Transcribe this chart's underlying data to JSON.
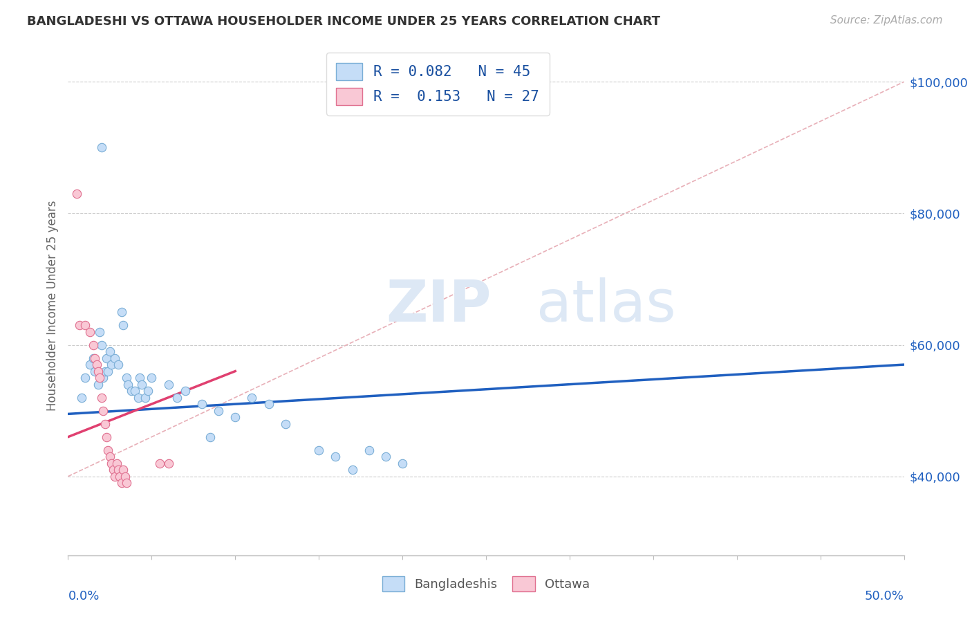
{
  "title": "BANGLADESHI VS OTTAWA HOUSEHOLDER INCOME UNDER 25 YEARS CORRELATION CHART",
  "source_text": "Source: ZipAtlas.com",
  "ylabel": "Householder Income Under 25 years",
  "xmin": 0.0,
  "xmax": 0.5,
  "ymin": 28000,
  "ymax": 104000,
  "yticks": [
    40000,
    60000,
    80000,
    100000
  ],
  "ytick_labels": [
    "$40,000",
    "$60,000",
    "$80,000",
    "$100,000"
  ],
  "legend_line1": "R = 0.082   N = 45",
  "legend_line2": "R =  0.153   N = 27",
  "watermark_part1": "ZIP",
  "watermark_part2": "atlas",
  "blue_scatter": [
    [
      0.008,
      52000
    ],
    [
      0.01,
      55000
    ],
    [
      0.013,
      57000
    ],
    [
      0.015,
      58000
    ],
    [
      0.016,
      56000
    ],
    [
      0.018,
      54000
    ],
    [
      0.019,
      62000
    ],
    [
      0.02,
      60000
    ],
    [
      0.021,
      55000
    ],
    [
      0.022,
      56000
    ],
    [
      0.023,
      58000
    ],
    [
      0.024,
      56000
    ],
    [
      0.025,
      59000
    ],
    [
      0.026,
      57000
    ],
    [
      0.028,
      58000
    ],
    [
      0.03,
      57000
    ],
    [
      0.032,
      65000
    ],
    [
      0.033,
      63000
    ],
    [
      0.035,
      55000
    ],
    [
      0.036,
      54000
    ],
    [
      0.038,
      53000
    ],
    [
      0.04,
      53000
    ],
    [
      0.042,
      52000
    ],
    [
      0.043,
      55000
    ],
    [
      0.044,
      54000
    ],
    [
      0.046,
      52000
    ],
    [
      0.048,
      53000
    ],
    [
      0.05,
      55000
    ],
    [
      0.06,
      54000
    ],
    [
      0.065,
      52000
    ],
    [
      0.07,
      53000
    ],
    [
      0.08,
      51000
    ],
    [
      0.085,
      46000
    ],
    [
      0.09,
      50000
    ],
    [
      0.1,
      49000
    ],
    [
      0.11,
      52000
    ],
    [
      0.12,
      51000
    ],
    [
      0.13,
      48000
    ],
    [
      0.15,
      44000
    ],
    [
      0.16,
      43000
    ],
    [
      0.17,
      41000
    ],
    [
      0.18,
      44000
    ],
    [
      0.19,
      43000
    ],
    [
      0.2,
      42000
    ],
    [
      0.02,
      90000
    ]
  ],
  "pink_scatter": [
    [
      0.005,
      83000
    ],
    [
      0.007,
      63000
    ],
    [
      0.01,
      63000
    ],
    [
      0.013,
      62000
    ],
    [
      0.015,
      60000
    ],
    [
      0.016,
      58000
    ],
    [
      0.017,
      57000
    ],
    [
      0.018,
      56000
    ],
    [
      0.019,
      55000
    ],
    [
      0.02,
      52000
    ],
    [
      0.021,
      50000
    ],
    [
      0.022,
      48000
    ],
    [
      0.023,
      46000
    ],
    [
      0.024,
      44000
    ],
    [
      0.025,
      43000
    ],
    [
      0.026,
      42000
    ],
    [
      0.027,
      41000
    ],
    [
      0.028,
      40000
    ],
    [
      0.029,
      42000
    ],
    [
      0.03,
      41000
    ],
    [
      0.031,
      40000
    ],
    [
      0.032,
      39000
    ],
    [
      0.033,
      41000
    ],
    [
      0.034,
      40000
    ],
    [
      0.035,
      39000
    ],
    [
      0.055,
      42000
    ],
    [
      0.06,
      42000
    ]
  ],
  "blue_line": {
    "x0": 0.0,
    "y0": 49500,
    "x1": 0.5,
    "y1": 57000
  },
  "pink_line": {
    "x0": 0.0,
    "y0": 46000,
    "x1": 0.1,
    "y1": 56000
  },
  "trend_line": {
    "x0": 0.0,
    "y0": 40000,
    "x1": 0.5,
    "y1": 100000
  },
  "background_color": "#ffffff",
  "legend_labels": [
    "Bangladeshis",
    "Ottawa"
  ]
}
